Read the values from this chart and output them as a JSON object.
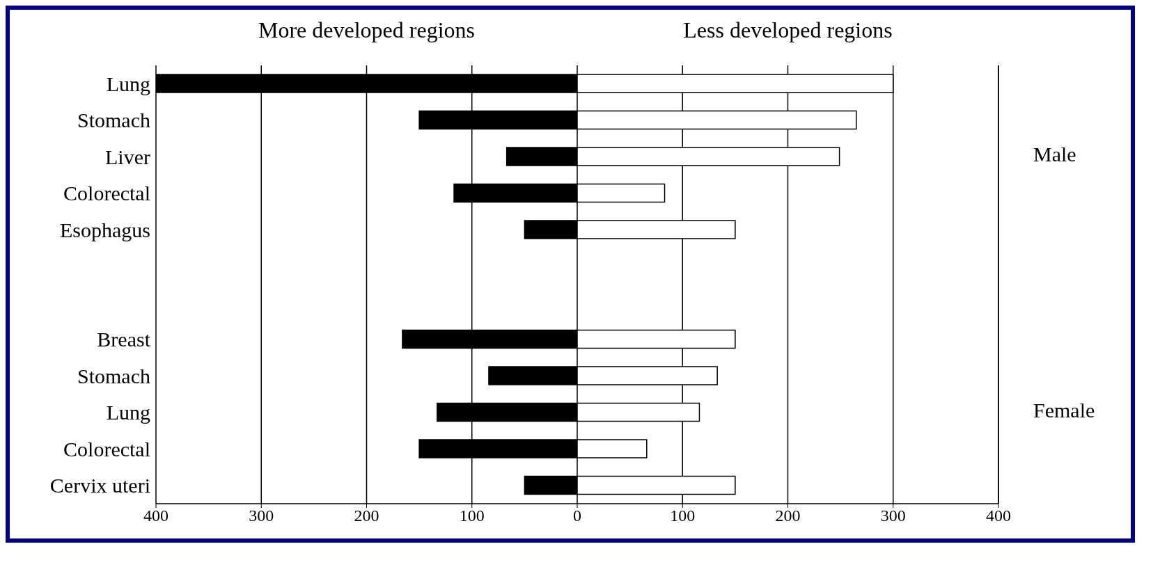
{
  "chart_data": {
    "type": "bar",
    "orientation": "horizontal",
    "categories": [
      "Lung",
      "Stomach",
      "Liver",
      "Colorectal",
      "Esophagus",
      null,
      null,
      "Breast",
      "Stomach",
      "Lung",
      "Colorectal",
      "Cervix uteri"
    ],
    "series": [
      {
        "name": "More developed regions",
        "color": "#000000",
        "values": [
          -400,
          -150,
          -67,
          -117,
          -50,
          null,
          null,
          -166,
          -84,
          -133,
          -150,
          -50
        ]
      },
      {
        "name": "Less developed regions",
        "color": "#ffffff",
        "values": [
          300,
          265,
          249,
          83,
          150,
          null,
          null,
          150,
          133,
          116,
          66,
          150
        ]
      }
    ],
    "xlim": [
      -400,
      400
    ],
    "xticks": [
      {
        "value": -400,
        "label": "400"
      },
      {
        "value": -300,
        "label": "300"
      },
      {
        "value": -200,
        "label": "200"
      },
      {
        "value": -100,
        "label": "100"
      },
      0,
      100,
      200,
      300,
      400
    ],
    "grid": "x",
    "stacked": true,
    "annotations": [
      "Male",
      "Female"
    ]
  }
}
